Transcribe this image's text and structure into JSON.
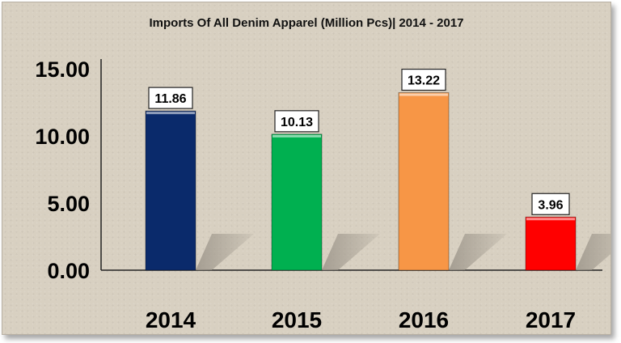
{
  "chart_data": {
    "type": "bar",
    "title": "Imports Of All Denim Apparel (Million Pcs)| 2014 - 2017",
    "xlabel": "",
    "ylabel": "",
    "categories": [
      "2014",
      "2015",
      "2016",
      "2017"
    ],
    "values": [
      11.86,
      10.13,
      13.22,
      3.96
    ],
    "data_labels": [
      "11.86",
      "10.13",
      "13.22",
      "3.96"
    ],
    "bar_colors": [
      "#0a2a6b",
      "#00b050",
      "#f79646",
      "#ff0000"
    ],
    "ylim": [
      0,
      15
    ],
    "yticks": [
      0,
      5,
      10,
      15
    ],
    "ytick_labels": [
      "0.00",
      "5.00",
      "10.00",
      "15.00"
    ],
    "grid": false,
    "legend": "none"
  }
}
